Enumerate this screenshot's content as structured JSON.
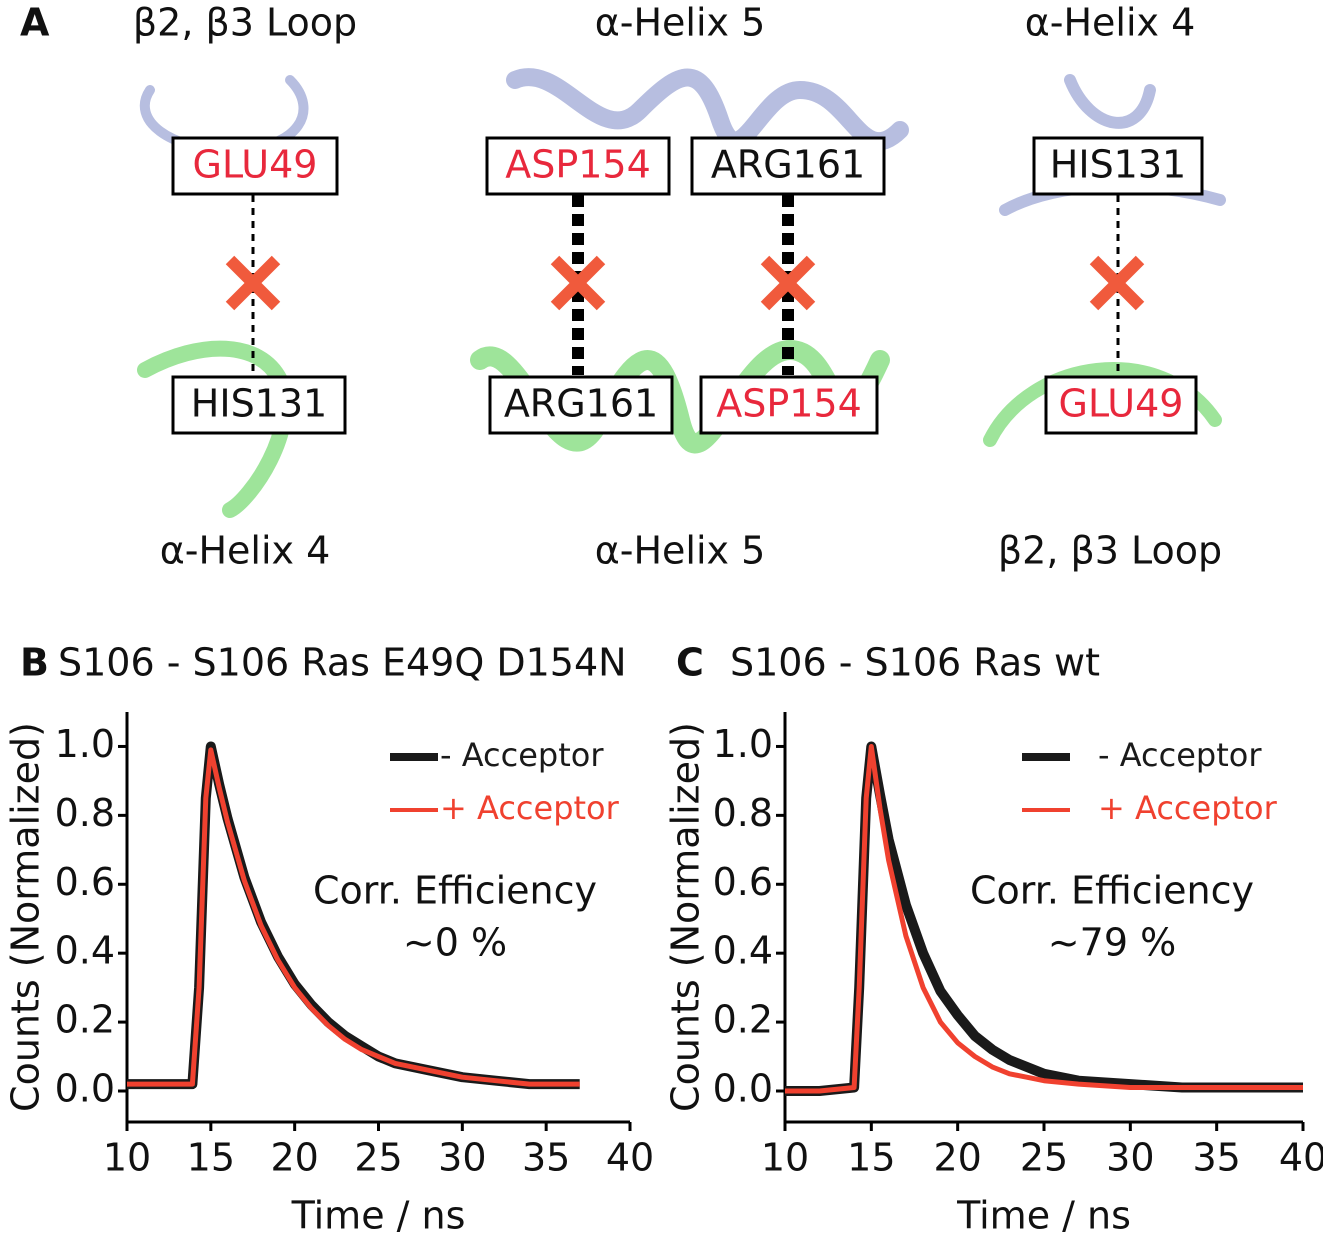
{
  "diagram": {
    "label": "A",
    "columns": [
      {
        "top": "β2,  β3 Loop",
        "bottom": "α-Helix 4",
        "pairs": [
          {
            "upper": "GLU49",
            "lower": "HIS131"
          }
        ]
      },
      {
        "top": "α-Helix 5",
        "bottom": "α-Helix 5",
        "pairs": [
          {
            "upper": "ASP154",
            "lower": "ARG161"
          },
          {
            "upper": "ARG161",
            "lower": "ASP154"
          }
        ]
      },
      {
        "top": "α-Helix 4",
        "bottom": "β2,  β3 Loop",
        "pairs": [
          {
            "upper": "HIS131",
            "lower": "GLU49"
          }
        ]
      }
    ]
  },
  "chart_data": [
    {
      "type": "line",
      "panel": "B",
      "title": "S106 - S106 Ras E49Q D154N",
      "x_label": "Time  / ns",
      "y_label": "Counts (Normalized)",
      "annotations": [
        "Corr. Efficiency",
        "~0 %"
      ],
      "x": [
        10,
        12,
        13.9,
        14.3,
        14.7,
        15,
        15.5,
        16,
        17,
        18,
        19,
        20,
        21,
        22,
        23,
        24,
        25,
        26,
        28,
        30,
        32,
        34,
        36,
        37
      ],
      "series": [
        {
          "name": "- Acceptor",
          "color": "#1a1a1a",
          "values": [
            0.02,
            0.02,
            0.02,
            0.3,
            0.85,
            1.0,
            0.89,
            0.79,
            0.62,
            0.49,
            0.39,
            0.31,
            0.25,
            0.2,
            0.16,
            0.13,
            0.1,
            0.08,
            0.06,
            0.04,
            0.03,
            0.02,
            0.02,
            0.02
          ]
        },
        {
          "name": "+ Acceptor",
          "color": "#f0412f",
          "values": [
            0.02,
            0.02,
            0.02,
            0.3,
            0.85,
            0.99,
            0.88,
            0.78,
            0.61,
            0.48,
            0.38,
            0.3,
            0.24,
            0.19,
            0.15,
            0.12,
            0.1,
            0.08,
            0.06,
            0.04,
            0.03,
            0.02,
            0.02,
            0.02
          ]
        }
      ],
      "xlim": [
        10,
        40
      ],
      "ylim": [
        -0.09,
        1.1
      ],
      "xticks": [
        10,
        15,
        20,
        25,
        30,
        35,
        40
      ],
      "yticks": [
        {
          "value": 0,
          "label": "0.0"
        },
        {
          "value": 0.2,
          "label": "0.2"
        },
        {
          "value": 0.4,
          "label": "0.4"
        },
        {
          "value": 0.6,
          "label": "0.6"
        },
        {
          "value": 0.8,
          "label": "0.8"
        },
        {
          "value": 1,
          "label": "1.0"
        }
      ]
    },
    {
      "type": "line",
      "panel": "C",
      "title": "S106 - S106 Ras wt",
      "x_label": "Time  / ns",
      "y_label": "Counts (Normalized)",
      "annotations": [
        "Corr. Efficiency",
        "~79 %"
      ],
      "x": [
        10,
        12,
        14,
        14.3,
        14.7,
        15,
        15.5,
        16,
        17,
        18,
        19,
        20,
        21,
        22,
        23,
        24,
        25,
        27,
        30,
        33,
        36,
        40
      ],
      "series": [
        {
          "name": "- Acceptor",
          "color": "#1a1a1a",
          "values": [
            0,
            0,
            0.01,
            0.3,
            0.85,
            1.0,
            0.86,
            0.73,
            0.54,
            0.4,
            0.29,
            0.22,
            0.16,
            0.12,
            0.09,
            0.07,
            0.05,
            0.03,
            0.02,
            0.01,
            0.01,
            0.01
          ]
        },
        {
          "name": "+ Acceptor",
          "color": "#f0412f",
          "values": [
            0,
            0,
            0.01,
            0.3,
            0.85,
            1.0,
            0.82,
            0.67,
            0.45,
            0.3,
            0.2,
            0.14,
            0.1,
            0.07,
            0.05,
            0.04,
            0.03,
            0.02,
            0.01,
            0.01,
            0.01,
            0.01
          ]
        }
      ],
      "xlim": [
        10,
        40
      ],
      "ylim": [
        -0.09,
        1.1
      ],
      "xticks": [
        10,
        15,
        20,
        25,
        30,
        35,
        40
      ],
      "yticks": [
        {
          "value": 0,
          "label": "0.0"
        },
        {
          "value": 0.2,
          "label": "0.2"
        },
        {
          "value": 0.4,
          "label": "0.4"
        },
        {
          "value": 0.6,
          "label": "0.6"
        },
        {
          "value": 0.8,
          "label": "0.8"
        },
        {
          "value": 1,
          "label": "1.0"
        }
      ]
    }
  ]
}
